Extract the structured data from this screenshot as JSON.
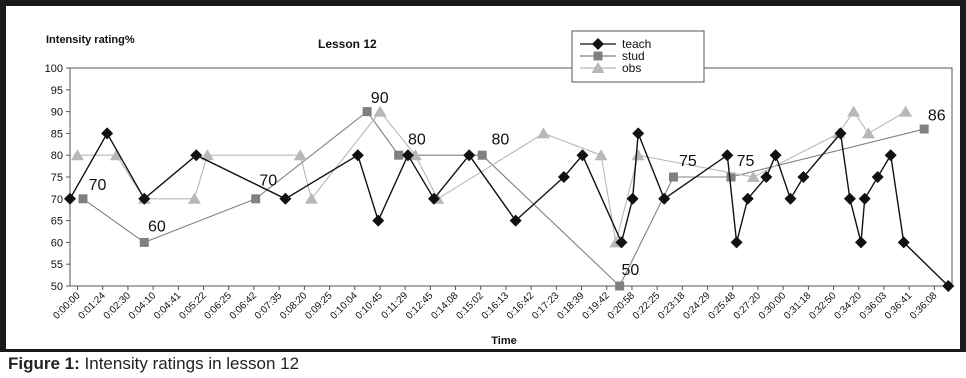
{
  "caption": {
    "label": "Figure 1:",
    "text": "Intensity ratings in lesson 12"
  },
  "chart_data": {
    "type": "line",
    "title": "Lesson 12",
    "ylabel": "Intensity rating%",
    "xlabel": "Time",
    "ylim": [
      50,
      100
    ],
    "yticks": [
      50,
      55,
      60,
      65,
      70,
      75,
      80,
      85,
      90,
      95,
      100
    ],
    "grid": false,
    "legend_position": "top-right",
    "categories": [
      "0:00:00",
      "0:01:24",
      "0:02:30",
      "0:04:10",
      "0:04:41",
      "0:05:22",
      "0:06:25",
      "0:06:42",
      "0:07:35",
      "0:08:20",
      "0:09:25",
      "0:10:04",
      "0:10:45",
      "0:11:29",
      "0:12:45",
      "0:14:08",
      "0:15:02",
      "0:16:13",
      "0:16:42",
      "0:17:23",
      "0:18:39",
      "0:19:42",
      "0:20:58",
      "0:22:25",
      "0:23:18",
      "0:24:29",
      "0:25:48",
      "0:27:20",
      "0:30:00",
      "0:31:18",
      "0:32:50",
      "0:34:20",
      "0:36:03",
      "0:36:41",
      "0:36:08"
    ],
    "series": [
      {
        "name": "teach",
        "color": "#111111",
        "marker": "diamond",
        "points": [
          [
            0,
            70
          ],
          [
            2,
            85
          ],
          [
            4,
            70
          ],
          [
            6.8,
            80
          ],
          [
            11.6,
            70
          ],
          [
            15.5,
            80
          ],
          [
            16.6,
            65
          ],
          [
            18.2,
            80
          ],
          [
            19.6,
            70
          ],
          [
            21.5,
            80
          ],
          [
            24,
            65
          ],
          [
            26.6,
            75
          ],
          [
            27.6,
            80
          ],
          [
            29.7,
            60
          ],
          [
            30.3,
            70
          ],
          [
            30.6,
            85
          ],
          [
            32,
            70
          ],
          [
            35.4,
            80
          ],
          [
            35.9,
            60
          ],
          [
            36.5,
            70
          ],
          [
            37.5,
            75
          ],
          [
            38,
            80
          ],
          [
            38.8,
            70
          ],
          [
            39.5,
            75
          ],
          [
            41.5,
            85
          ],
          [
            42,
            70
          ],
          [
            42.6,
            60
          ],
          [
            42.8,
            70
          ],
          [
            43.5,
            75
          ],
          [
            44.2,
            80
          ],
          [
            44.9,
            60
          ],
          [
            47.3,
            50
          ]
        ]
      },
      {
        "name": "stud",
        "color": "#808080",
        "marker": "square",
        "points": [
          [
            0.7,
            70
          ],
          [
            4,
            60
          ],
          [
            10,
            70
          ],
          [
            16,
            90
          ],
          [
            17.7,
            80
          ],
          [
            22.2,
            80
          ],
          [
            29.6,
            50
          ],
          [
            32.5,
            75
          ],
          [
            35.6,
            75
          ],
          [
            46,
            86
          ]
        ]
      },
      {
        "name": "obs",
        "color": "#b8b8b8",
        "marker": "triangle",
        "points": [
          [
            0.4,
            80
          ],
          [
            2.5,
            80
          ],
          [
            4,
            70
          ],
          [
            6.7,
            70
          ],
          [
            7.4,
            80
          ],
          [
            12.4,
            80
          ],
          [
            13,
            70
          ],
          [
            16.7,
            90
          ],
          [
            18.6,
            80
          ],
          [
            19.8,
            70
          ],
          [
            25.5,
            85
          ],
          [
            28.6,
            80
          ],
          [
            29.4,
            60
          ],
          [
            30.6,
            80
          ],
          [
            36.8,
            75
          ],
          [
            41.4,
            85
          ],
          [
            42.2,
            90
          ],
          [
            43,
            85
          ],
          [
            45,
            90
          ]
        ]
      }
    ],
    "annotations": [
      {
        "text": "70",
        "x": 1.0,
        "y": 72
      },
      {
        "text": "60",
        "x": 4.2,
        "y": 62.5
      },
      {
        "text": "70",
        "x": 10.2,
        "y": 73
      },
      {
        "text": "90",
        "x": 16.2,
        "y": 92
      },
      {
        "text": "80",
        "x": 18.2,
        "y": 82.5
      },
      {
        "text": "80",
        "x": 22.7,
        "y": 82.5
      },
      {
        "text": "50",
        "x": 29.7,
        "y": 52.5
      },
      {
        "text": "75",
        "x": 32.8,
        "y": 77.5
      },
      {
        "text": "75",
        "x": 35.9,
        "y": 77.5
      },
      {
        "text": "86",
        "x": 46.2,
        "y": 88
      }
    ]
  }
}
